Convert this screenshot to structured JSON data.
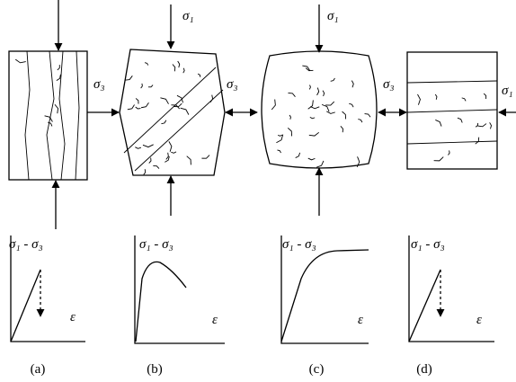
{
  "panels": [
    {
      "confining_label": "σ₃",
      "axis_y_label": "σ₁ - σ₃",
      "axis_x_label": "ε",
      "caption": "(a)"
    },
    {
      "axial_label": "σ₁",
      "confining_label": "σ₃",
      "axis_y_label": "σ₁ - σ₃",
      "axis_x_label": "ε",
      "caption": "(b)"
    },
    {
      "axial_label": "σ₁",
      "confining_label": "σ₃",
      "axis_y_label": "σ₁ - σ₃",
      "axis_x_label": "ε",
      "caption": "(c)"
    },
    {
      "axial_label": "σ₁",
      "confining_label": "σ₃",
      "axis_y_label": "σ₁ - σ₃",
      "axis_x_label": "ε",
      "caption": "(d)"
    }
  ]
}
